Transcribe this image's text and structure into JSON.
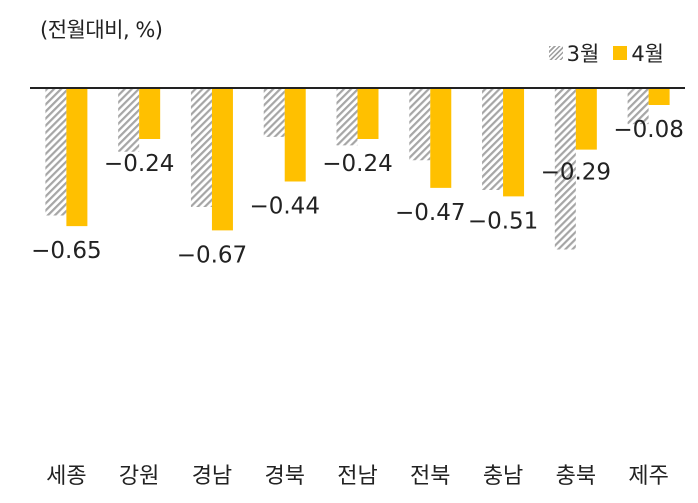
{
  "unit_label": "(전월대비, %)",
  "colors": {
    "march": "#a6a6a6",
    "april": "#ffc000",
    "axis": "#222222",
    "text": "#222222"
  },
  "chart_data": {
    "type": "bar",
    "title": "",
    "xlabel": "",
    "ylabel": "(전월대비, %)",
    "categories": [
      "세종",
      "강원",
      "경남",
      "경북",
      "전남",
      "전북",
      "충남",
      "충북",
      "제주"
    ],
    "series": [
      {
        "name": "3월",
        "pattern": "hatched-gray",
        "values": [
          -0.6,
          -0.3,
          -0.56,
          -0.23,
          -0.27,
          -0.34,
          -0.48,
          -0.76,
          -0.17
        ]
      },
      {
        "name": "4월",
        "pattern": "solid-yellow",
        "values": [
          -0.65,
          -0.24,
          -0.67,
          -0.44,
          -0.24,
          -0.47,
          -0.51,
          -0.29,
          -0.08
        ]
      }
    ],
    "data_labels": [
      "−0.65",
      "−0.24",
      "−0.67",
      "−0.44",
      "−0.24",
      "−0.47",
      "−0.51",
      "−0.29",
      "−0.08"
    ],
    "ylim": [
      -1.6,
      0
    ],
    "grid": false,
    "legend": "top-right"
  }
}
